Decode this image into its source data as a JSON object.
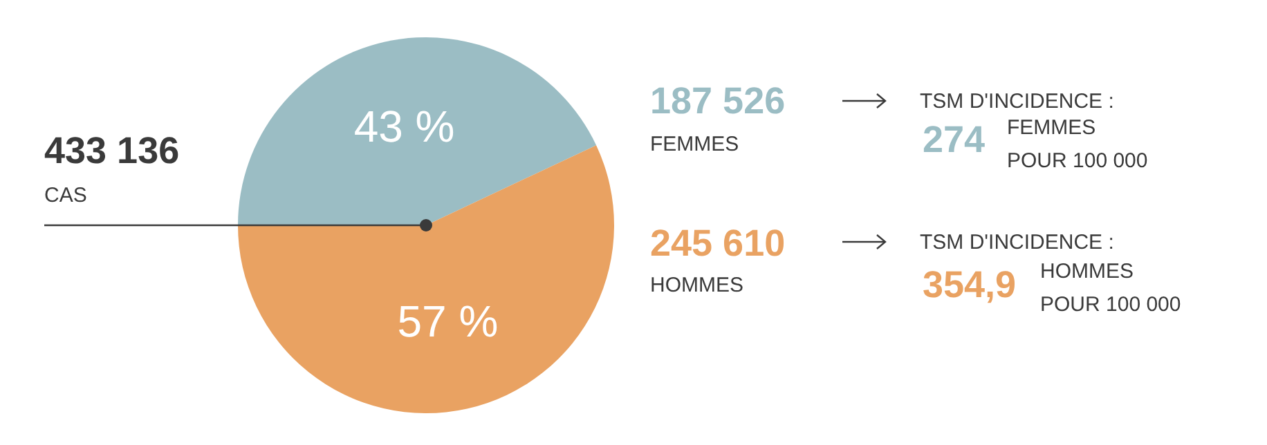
{
  "chart_data": {
    "type": "pie",
    "categories": [
      null,
      null
    ],
    "values": [
      43,
      57
    ],
    "value_labels": [
      "43 %",
      "57 %"
    ],
    "colors": [
      "#9bbdc4",
      "#e9a262"
    ],
    "annotations": [
      "433 136",
      "CAS",
      "187 526",
      "TSM D'INCIDENCE :",
      "274",
      "FEMMES",
      "POUR 100 000",
      "245 610",
      "TSM D'INCIDENCE :",
      "354,9",
      "HOMMES",
      "POUR 100 000",
      "FEMMES",
      "HOMMES"
    ]
  }
}
